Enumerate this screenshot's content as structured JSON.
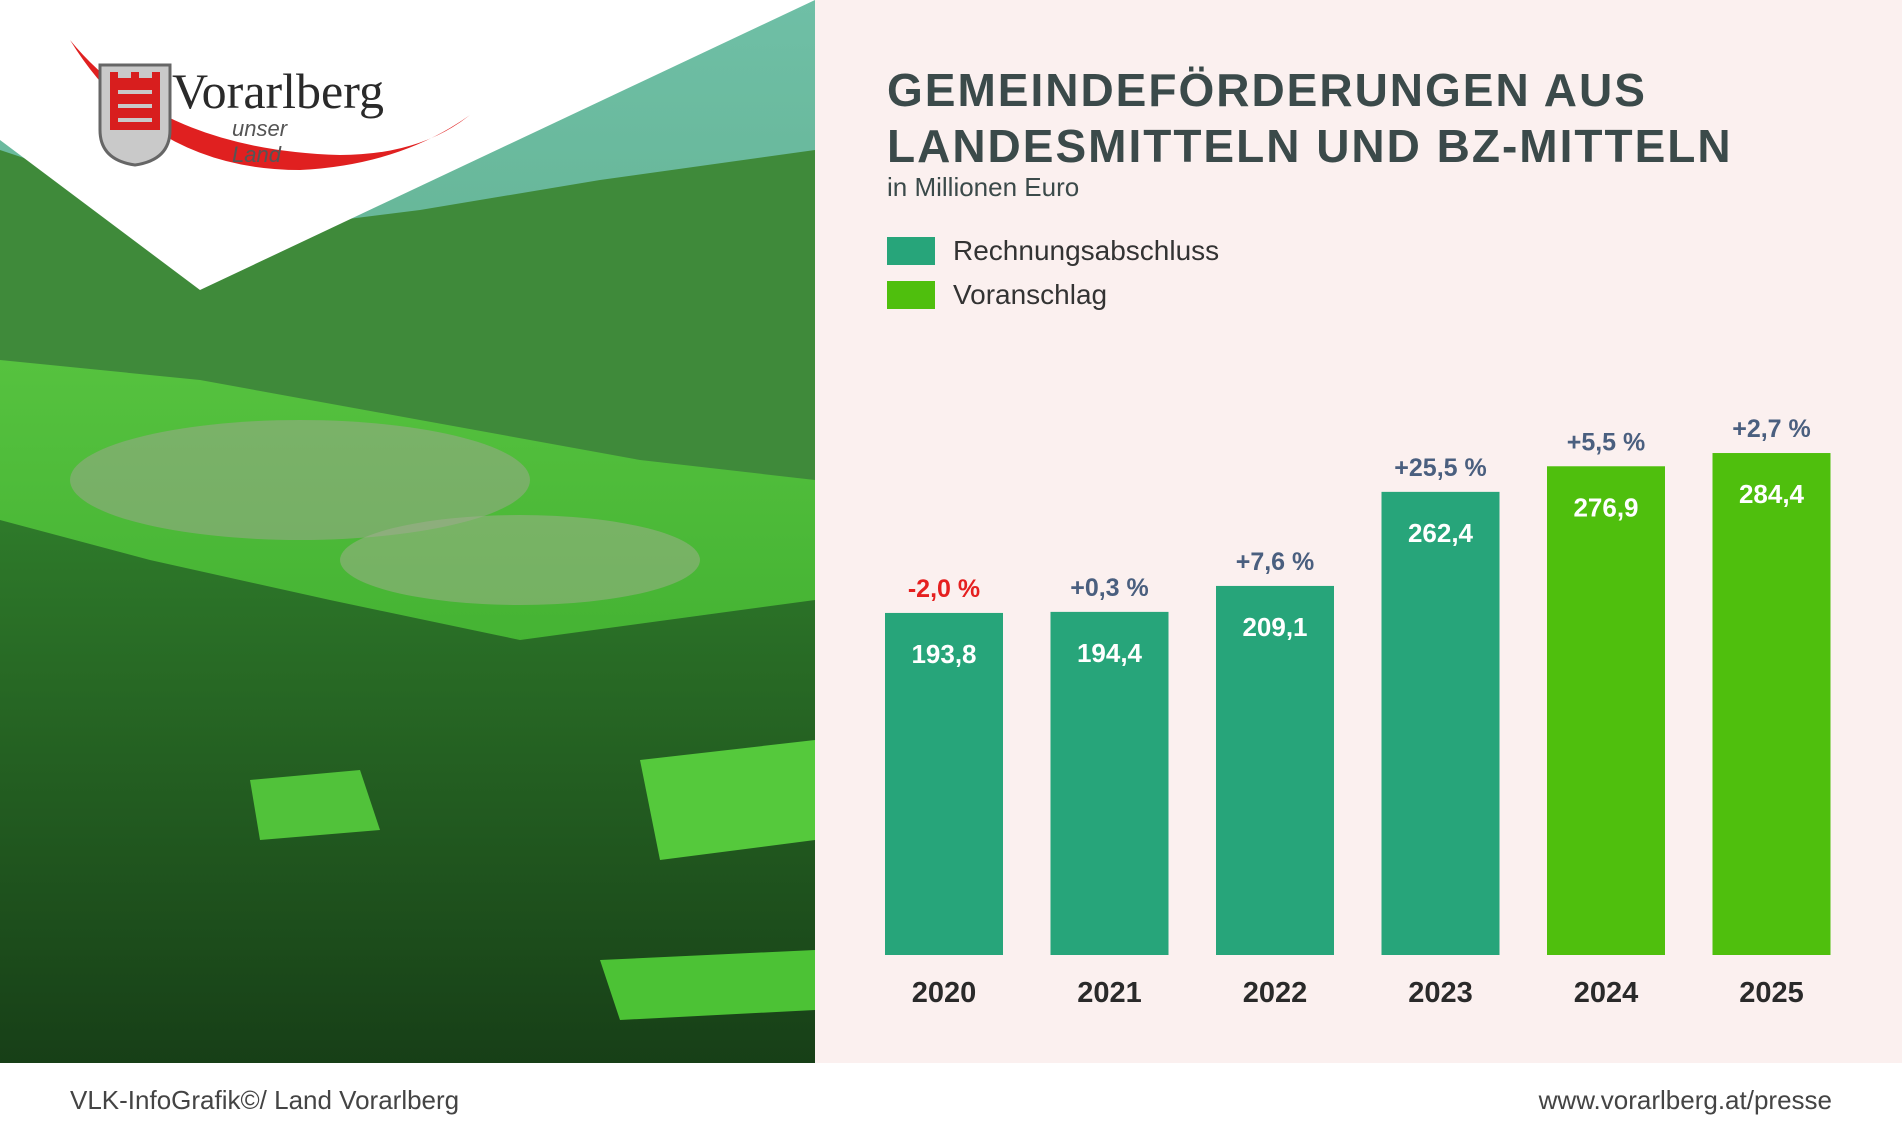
{
  "logo": {
    "name": "Vorarlberg",
    "tagline": "unser Land"
  },
  "colors": {
    "actual": "#27a57a",
    "forecast": "#4fbf0d",
    "negative_change": "#e52020",
    "positive_change": "#4a5f7f",
    "title": "#3b4a4a",
    "panel_bg": "#fbf0ef"
  },
  "chart_data": {
    "type": "bar",
    "title": "Gemeindeförderungen aus Landesmitteln und BZ-Mitteln",
    "title_lines": [
      "Gemeindeförderungen aus",
      "Landesmitteln und BZ-Mitteln"
    ],
    "subtitle": "in Millionen Euro",
    "ylim": [
      0,
      300
    ],
    "grid": false,
    "legend_position": "top-left",
    "legend": [
      {
        "label": "Rechnungsabschluss",
        "key": "actual"
      },
      {
        "label": "Voranschlag",
        "key": "forecast"
      }
    ],
    "categories": [
      "2020",
      "2021",
      "2022",
      "2023",
      "2024",
      "2025"
    ],
    "values": [
      193.8,
      194.4,
      209.1,
      262.4,
      276.9,
      284.4
    ],
    "value_labels": [
      "193,8",
      "194,4",
      "209,1",
      "262,4",
      "276,9",
      "284,4"
    ],
    "series_type": [
      "actual",
      "actual",
      "actual",
      "actual",
      "forecast",
      "forecast"
    ],
    "changes": [
      "-2,0 %",
      "+0,3 %",
      "+7,6 %",
      "+25,5 %",
      "+5,5 %",
      "+2,7 %"
    ],
    "change_sign": [
      "negative",
      "positive",
      "positive",
      "positive",
      "positive",
      "positive"
    ]
  },
  "footer": {
    "source": "VLK-InfoGrafik©/ Land Vorarlberg",
    "url": "www.vorarlberg.at/presse"
  }
}
